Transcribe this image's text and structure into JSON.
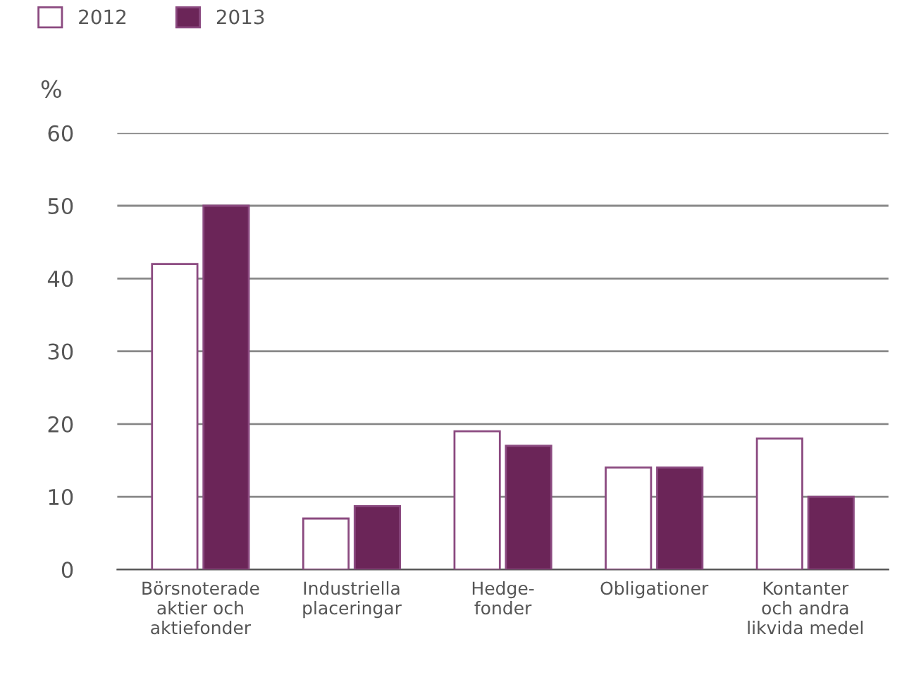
{
  "chart_data": {
    "type": "bar",
    "ylabel": "%",
    "categories": [
      "Börsnoterade\naktier och\naktiefonder",
      "Industriella\nplaceringar",
      "Hedge-\nfonder",
      "Obligationer",
      "Kontanter\noch andra\nlikvida medel"
    ],
    "series": [
      {
        "name": "2012",
        "color": "#ffffff",
        "values": [
          42,
          7,
          19,
          14,
          18
        ]
      },
      {
        "name": "2013",
        "color": "#6b2558",
        "values": [
          50,
          8.7,
          17,
          14,
          10
        ]
      }
    ],
    "ylim": [
      0,
      60
    ],
    "yticks": [
      0,
      10,
      20,
      30,
      40,
      50,
      60
    ],
    "grid": "y",
    "legend": "top left"
  }
}
